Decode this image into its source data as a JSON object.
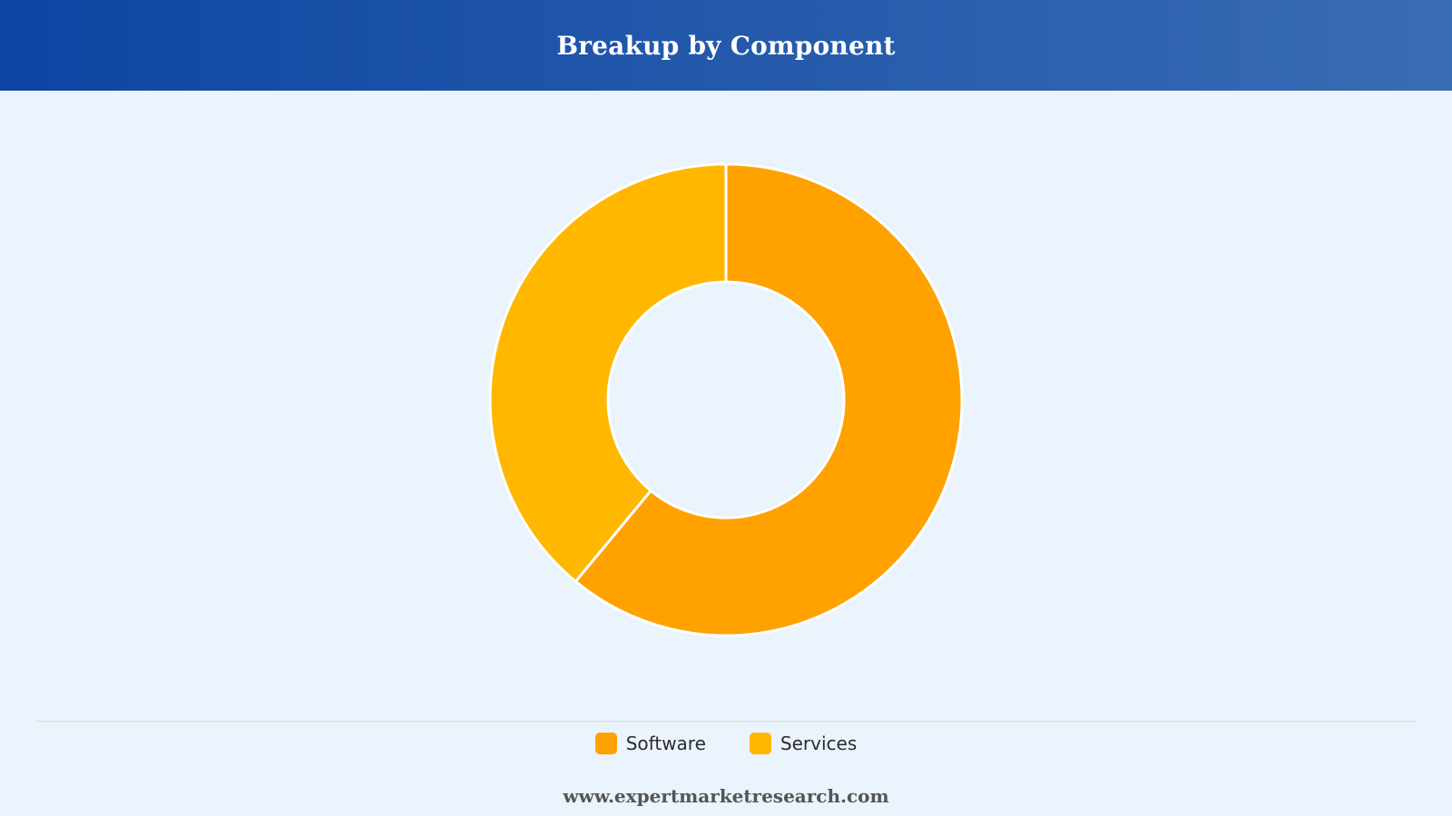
{
  "header": {
    "title": "Breakup by Component"
  },
  "chart_data": {
    "type": "pie",
    "title": "Breakup by Component",
    "categories": [
      "Software",
      "Services"
    ],
    "values": [
      61,
      39
    ],
    "colors": [
      "#ffa200",
      "#ffb700"
    ],
    "legend_position": "bottom"
  },
  "legend": {
    "items": [
      {
        "label": "Software",
        "color": "#ffa200"
      },
      {
        "label": "Services",
        "color": "#ffb700"
      }
    ]
  },
  "footer": {
    "url": "www.expertmarketresearch.com"
  }
}
